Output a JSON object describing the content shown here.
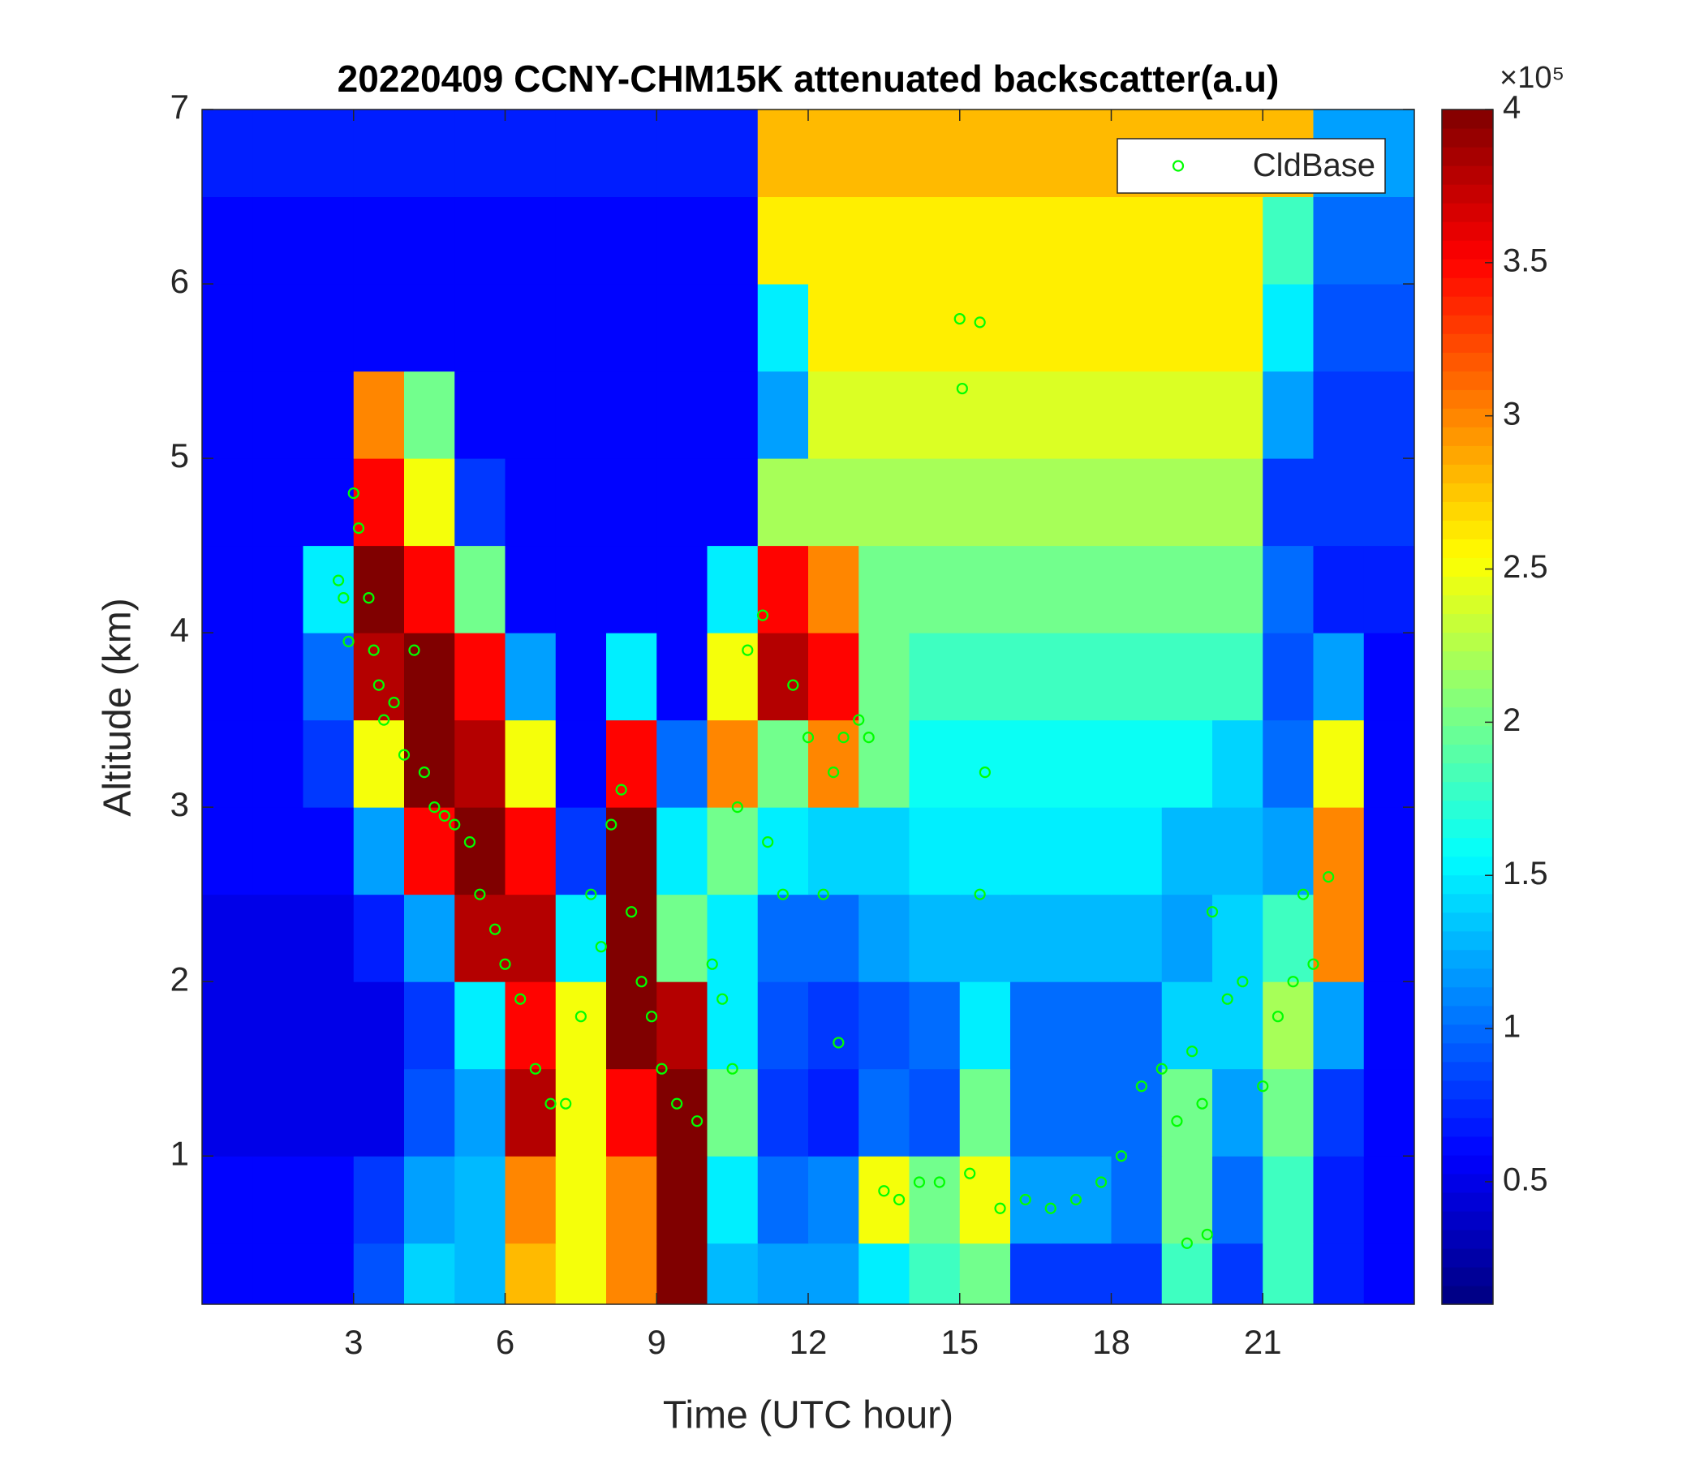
{
  "chart_data": {
    "type": "heatmap",
    "title": "20220409 CCNY-CHM15K attenuated backscatter(a.u)",
    "xlabel": "Time (UTC hour)",
    "ylabel": "Altitude (km)",
    "xlim": [
      0,
      24
    ],
    "ylim": [
      0.15,
      7
    ],
    "xticks": [
      3,
      6,
      9,
      12,
      15,
      18,
      21
    ],
    "yticks": [
      1,
      2,
      3,
      4,
      5,
      6,
      7
    ],
    "xbins": [
      0,
      1,
      2,
      3,
      4,
      5,
      6,
      7,
      8,
      9,
      10,
      11,
      12,
      13,
      14,
      15,
      16,
      17,
      18,
      19,
      20,
      21,
      22,
      23,
      24
    ],
    "ybins": [
      0.15,
      0.5,
      1,
      1.5,
      2,
      2.5,
      3,
      3.5,
      4,
      4.5,
      5,
      5.5,
      6,
      6.5,
      7
    ],
    "z": [
      [
        0.6,
        0.6,
        0.6,
        0.9,
        1.4,
        1.3,
        2.8,
        2.5,
        3.0,
        4,
        1.3,
        1.2,
        1.2,
        1.5,
        1.8,
        2.0,
        0.8,
        0.8,
        0.8,
        1.8,
        0.8,
        1.8,
        0.7,
        0.6
      ],
      [
        0.6,
        0.6,
        0.6,
        0.8,
        1.2,
        1.3,
        3.0,
        2.5,
        3.0,
        4,
        1.5,
        1.0,
        1.1,
        2.5,
        2.0,
        2.5,
        1.2,
        1.2,
        1.0,
        2.0,
        1.0,
        1.8,
        0.7,
        0.6
      ],
      [
        0.5,
        0.5,
        0.5,
        0.5,
        0.9,
        1.2,
        3.8,
        2.5,
        3.5,
        4,
        2.0,
        0.8,
        0.7,
        1.0,
        0.9,
        2.0,
        1.0,
        1.0,
        1.0,
        2.0,
        1.2,
        2.0,
        0.8,
        0.6
      ],
      [
        0.5,
        0.5,
        0.5,
        0.5,
        0.8,
        1.5,
        3.5,
        2.5,
        4,
        3.8,
        1.5,
        0.9,
        0.8,
        0.9,
        1.0,
        1.5,
        1.0,
        1.0,
        1.0,
        1.4,
        1.4,
        2.2,
        1.2,
        0.6
      ],
      [
        0.5,
        0.5,
        0.5,
        0.7,
        1.2,
        3.8,
        3.8,
        1.5,
        4,
        2.0,
        1.5,
        1.0,
        1.0,
        1.2,
        1.3,
        1.3,
        1.3,
        1.3,
        1.3,
        1.2,
        1.4,
        1.8,
        3.0,
        0.6
      ],
      [
        0.6,
        0.6,
        0.6,
        1.2,
        3.5,
        4,
        3.5,
        0.8,
        4,
        1.5,
        2.0,
        1.5,
        1.4,
        1.4,
        1.5,
        1.5,
        1.5,
        1.5,
        1.5,
        1.3,
        1.3,
        1.2,
        3.0,
        0.6
      ],
      [
        0.6,
        0.6,
        0.8,
        2.5,
        4,
        3.8,
        2.5,
        0.6,
        3.5,
        1.0,
        3.0,
        2.0,
        3.0,
        2.0,
        1.6,
        1.6,
        1.6,
        1.6,
        1.6,
        1.6,
        1.4,
        1.0,
        2.5,
        0.6
      ],
      [
        0.6,
        0.6,
        1.0,
        3.8,
        4,
        3.5,
        1.2,
        0.6,
        1.5,
        0.6,
        2.5,
        3.8,
        3.5,
        2.0,
        1.8,
        1.8,
        1.8,
        1.8,
        1.8,
        1.8,
        1.8,
        0.9,
        1.2,
        0.6
      ],
      [
        0.6,
        0.6,
        1.5,
        4,
        3.5,
        2.0,
        0.6,
        0.6,
        0.6,
        0.6,
        1.5,
        3.5,
        3.0,
        2.0,
        2.0,
        2.0,
        2.0,
        2.0,
        2.0,
        2.0,
        2.0,
        1.0,
        0.7,
        0.7
      ],
      [
        0.6,
        0.6,
        0.6,
        3.5,
        2.5,
        0.8,
        0.6,
        0.6,
        0.6,
        0.6,
        0.6,
        2.2,
        2.2,
        2.2,
        2.2,
        2.2,
        2.2,
        2.2,
        2.2,
        2.2,
        2.2,
        0.8,
        0.8,
        0.8
      ],
      [
        0.6,
        0.6,
        0.6,
        3.0,
        2.0,
        0.6,
        0.6,
        0.6,
        0.6,
        0.6,
        0.6,
        1.2,
        2.4,
        2.4,
        2.4,
        2.4,
        2.4,
        2.4,
        2.4,
        2.4,
        2.4,
        1.2,
        0.8,
        0.8
      ],
      [
        0.6,
        0.6,
        0.6,
        0.6,
        0.6,
        0.6,
        0.6,
        0.6,
        0.6,
        0.6,
        0.6,
        1.5,
        2.6,
        2.6,
        2.6,
        2.6,
        2.6,
        2.6,
        2.6,
        2.6,
        2.6,
        1.5,
        0.9,
        0.9
      ],
      [
        0.6,
        0.6,
        0.6,
        0.6,
        0.6,
        0.6,
        0.6,
        0.6,
        0.6,
        0.6,
        0.6,
        2.6,
        2.6,
        2.6,
        2.6,
        2.6,
        2.6,
        2.6,
        2.6,
        2.6,
        2.6,
        1.8,
        1.0,
        1.0
      ],
      [
        0.7,
        0.7,
        0.7,
        0.7,
        0.7,
        0.7,
        0.7,
        0.7,
        0.7,
        0.7,
        0.7,
        2.8,
        2.8,
        2.8,
        2.8,
        2.8,
        2.8,
        2.8,
        2.8,
        2.8,
        2.8,
        2.8,
        1.2,
        1.2
      ]
    ],
    "colormap": "jet",
    "clim": [
      0.1,
      4
    ],
    "colorbar_ticks": [
      0.5,
      1,
      1.5,
      2,
      2.5,
      3,
      3.5,
      4
    ],
    "colorbar_multiplier": "×10⁵",
    "legend_position": "upper right",
    "series": [
      {
        "name": "CldBase",
        "type": "scatter",
        "color": "#00ff00",
        "x": [
          2.7,
          2.8,
          2.9,
          3.0,
          3.1,
          3.3,
          3.4,
          3.5,
          3.6,
          3.8,
          4.0,
          4.2,
          4.4,
          4.6,
          4.8,
          5.0,
          5.3,
          5.5,
          5.8,
          6.0,
          6.3,
          6.6,
          6.9,
          7.2,
          7.5,
          7.7,
          7.9,
          8.1,
          8.3,
          8.5,
          8.7,
          8.9,
          9.1,
          9.4,
          9.8,
          10.1,
          10.3,
          10.5,
          10.6,
          10.8,
          11.1,
          11.2,
          11.5,
          11.7,
          12.0,
          12.3,
          12.5,
          12.7,
          13.0,
          13.2,
          12.6,
          13.5,
          13.8,
          14.2,
          14.6,
          15.0,
          15.05,
          15.4,
          15.2,
          15.4,
          15.5,
          15.8,
          16.3,
          16.8,
          17.3,
          17.8,
          18.2,
          18.6,
          19.0,
          19.3,
          19.6,
          19.8,
          20.0,
          20.3,
          20.6,
          21.0,
          21.3,
          21.6,
          21.8,
          22.0,
          22.3,
          19.5,
          19.9
        ],
        "y": [
          4.3,
          4.2,
          3.95,
          4.8,
          4.6,
          4.2,
          3.9,
          3.7,
          3.5,
          3.6,
          3.3,
          3.9,
          3.2,
          3.0,
          2.95,
          2.9,
          2.8,
          2.5,
          2.3,
          2.1,
          1.9,
          1.5,
          1.3,
          1.3,
          1.8,
          2.5,
          2.2,
          2.9,
          3.1,
          2.4,
          2.0,
          1.8,
          1.5,
          1.3,
          1.2,
          2.1,
          1.9,
          1.5,
          3.0,
          3.9,
          4.1,
          2.8,
          2.5,
          3.7,
          3.4,
          2.5,
          3.2,
          3.4,
          3.5,
          3.4,
          1.65,
          0.8,
          0.75,
          0.85,
          0.85,
          5.8,
          5.4,
          5.78,
          0.9,
          2.5,
          3.2,
          0.7,
          0.75,
          0.7,
          0.75,
          0.85,
          1.0,
          1.4,
          1.5,
          1.2,
          1.6,
          1.3,
          2.4,
          1.9,
          2.0,
          1.4,
          1.8,
          2.0,
          2.5,
          2.1,
          2.6,
          0.5,
          0.55
        ]
      }
    ]
  }
}
